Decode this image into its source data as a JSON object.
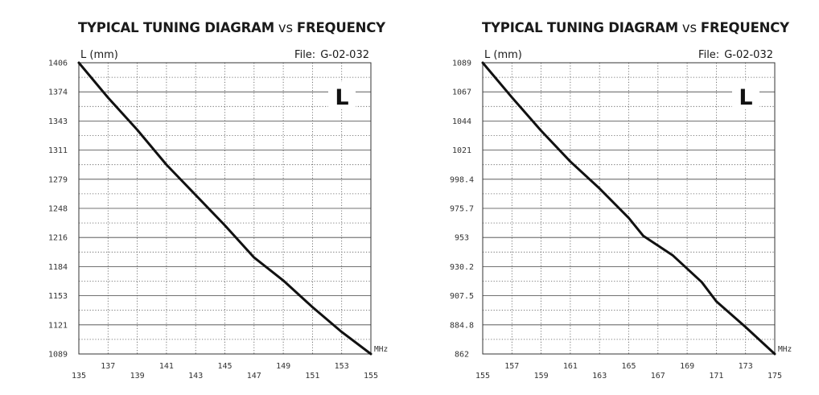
{
  "chart_data": [
    {
      "type": "line",
      "title": "TYPICAL TUNING DIAGRAM",
      "title_vs": "vs",
      "title_tail": "FREQUENCY",
      "ylabel": "L (mm)",
      "file_label": "File:",
      "file_id": "G-02-032",
      "band_marker": "L",
      "x_unit": "MHz",
      "xlim": [
        135,
        155
      ],
      "ylim": [
        1089,
        1406
      ],
      "grid": true,
      "x_ticks": [
        "135",
        "137",
        "139",
        "141",
        "143",
        "145",
        "147",
        "149",
        "151",
        "153",
        "155"
      ],
      "y_ticks": [
        "1406",
        "1374",
        "1343",
        "1311",
        "1279",
        "1248",
        "1216",
        "1184",
        "1153",
        "1121",
        "1089"
      ],
      "series": [
        {
          "x": [
            135,
            137,
            139,
            141,
            143,
            145,
            147,
            149,
            151,
            153,
            155
          ],
          "y": [
            1406,
            1368,
            1333,
            1295,
            1262,
            1229,
            1194,
            1169,
            1140,
            1113,
            1089
          ]
        }
      ]
    },
    {
      "type": "line",
      "title": "TYPICAL TUNING DIAGRAM",
      "title_vs": "vs",
      "title_tail": "FREQUENCY",
      "ylabel": "L (mm)",
      "file_label": "File:",
      "file_id": "G-02-032",
      "band_marker": "L",
      "x_unit": "MHz",
      "xlim": [
        155,
        175
      ],
      "ylim": [
        862,
        1089
      ],
      "grid": true,
      "x_ticks": [
        "155",
        "157",
        "159",
        "161",
        "163",
        "165",
        "167",
        "169",
        "171",
        "173",
        "175"
      ],
      "y_ticks": [
        "1089",
        "1067",
        "1044",
        "1021",
        "998.4",
        "975.7",
        "953",
        "930.2",
        "907.5",
        "884.8",
        "862"
      ],
      "series": [
        {
          "x": [
            155,
            157,
            159,
            161,
            163,
            165,
            166,
            168,
            170,
            171,
            173,
            175
          ],
          "y": [
            1089,
            1062,
            1036,
            1012,
            991,
            968,
            954,
            939,
            918,
            903,
            883,
            862
          ]
        }
      ]
    }
  ]
}
